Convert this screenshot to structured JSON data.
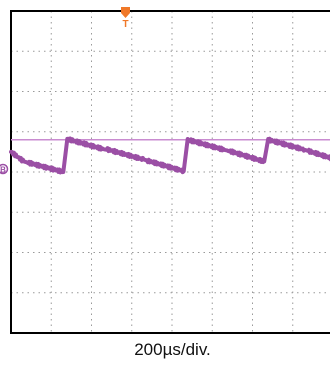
{
  "chart_data": {
    "type": "line",
    "title": "",
    "xlabel": "200µs/div.",
    "ylabel": "",
    "grid": true,
    "trigger_marker": "T",
    "channel_marker": "B",
    "x_unit": "div",
    "y_unit": "div",
    "xlim": [
      0,
      10
    ],
    "ylim": [
      0,
      8
    ],
    "reference_level": 4.8,
    "series": [
      {
        "color": "#9b4fa5",
        "x": [
          0,
          0.32,
          0.4,
          1.3,
          1.4,
          2.29,
          2.39,
          2.4,
          3.3,
          3.4,
          4.29,
          4.39,
          4.4,
          5.3,
          5.4,
          6.29,
          6.39,
          6.4,
          7.3,
          7.4,
          8.29,
          8.39,
          8.4,
          9.3,
          9.4,
          10
        ],
        "y": [
          4.5,
          4.26,
          4.24,
          4.0,
          4.82,
          4.57,
          4.55,
          4.56,
          4.31,
          4.28,
          4.02,
          4.82,
          4.8,
          4.55,
          4.53,
          4.26,
          4.82,
          4.8,
          4.55,
          4.52,
          4.24,
          4.82,
          4.8,
          4.55,
          4.52,
          4.35
        ]
      }
    ]
  },
  "colors": {
    "trace": "#9b4fa5",
    "reference": "#c98bd0",
    "trigger": "#f07828",
    "grid": "#9a9a9a",
    "frame": "#000000"
  }
}
